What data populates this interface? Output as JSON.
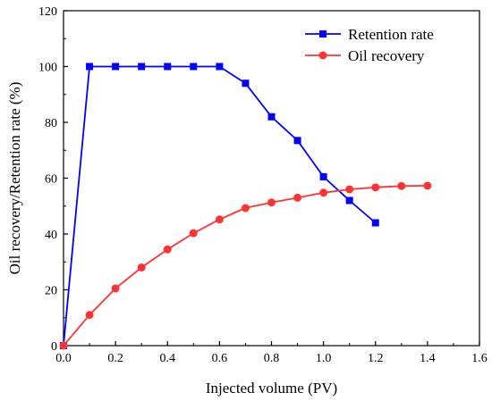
{
  "chart_data": {
    "type": "line",
    "xlabel": "Injected volume (PV)",
    "ylabel": "Oil recovery/Retention rate (%)",
    "xlim": [
      0.0,
      1.6
    ],
    "ylim": [
      0,
      120
    ],
    "xticks": [
      "0.0",
      "0.2",
      "0.4",
      "0.6",
      "0.8",
      "1.0",
      "1.2",
      "1.4",
      "1.6"
    ],
    "yticks": [
      "0",
      "20",
      "40",
      "60",
      "80",
      "100",
      "120"
    ],
    "grid": false,
    "legend_position": "top-right",
    "series": [
      {
        "name": "Retention rate",
        "color": "#0000ff",
        "marker": "square",
        "x": [
          0.0,
          0.1,
          0.2,
          0.3,
          0.4,
          0.5,
          0.6,
          0.7,
          0.8,
          0.9,
          1.0,
          1.1,
          1.2
        ],
        "y": [
          0,
          100,
          100,
          100,
          100,
          100,
          100,
          94,
          82,
          73.5,
          60.5,
          52,
          44
        ]
      },
      {
        "name": "Oil recovery",
        "color": "#ff3333",
        "marker": "circle",
        "x": [
          0.0,
          0.1,
          0.2,
          0.3,
          0.4,
          0.5,
          0.6,
          0.7,
          0.8,
          0.9,
          1.0,
          1.1,
          1.2,
          1.3,
          1.4
        ],
        "y": [
          0,
          11,
          20.5,
          28,
          34.5,
          40.3,
          45.2,
          49.3,
          51.3,
          53,
          54.8,
          56,
          56.7,
          57.2,
          57.3
        ]
      }
    ]
  }
}
